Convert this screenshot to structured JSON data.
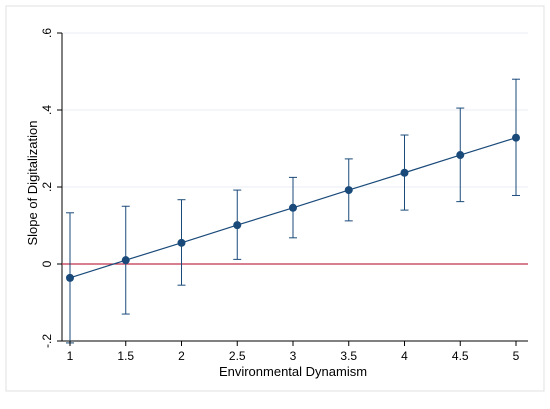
{
  "chart_data": {
    "type": "line",
    "title": "",
    "xlabel": "Environmental Dynamism",
    "ylabel": "Slope of Digitalization",
    "xlim": [
      1,
      5
    ],
    "ylim": [
      -0.2,
      0.6
    ],
    "x_ticks": [
      "1",
      "1.5",
      "2",
      "2.5",
      "3",
      "3.5",
      "4",
      "4.5",
      "5"
    ],
    "y_ticks": [
      "-.2",
      "0",
      ".2",
      ".4",
      ".6"
    ],
    "grid": "horizontal",
    "legend": "none",
    "reference_line": {
      "y": 0,
      "color": "#c0304a"
    },
    "series": [
      {
        "x": [
          1,
          1.5,
          2,
          2.5,
          3,
          3.5,
          4,
          4.5,
          5
        ],
        "y": [
          -0.036,
          0.01,
          0.055,
          0.101,
          0.146,
          0.192,
          0.237,
          0.283,
          0.328
        ],
        "lower": [
          -0.205,
          -0.13,
          -0.055,
          0.012,
          0.068,
          0.112,
          0.14,
          0.162,
          0.178
        ],
        "upper": [
          0.133,
          0.15,
          0.167,
          0.192,
          0.225,
          0.273,
          0.335,
          0.405,
          0.48
        ],
        "color": "#1a4a7a"
      }
    ],
    "colors": {
      "background": "#ffffff",
      "frame": "#e0e0e0",
      "grid": "#e8eef3",
      "axis": "#000000",
      "series": "#1a4a7a"
    }
  }
}
